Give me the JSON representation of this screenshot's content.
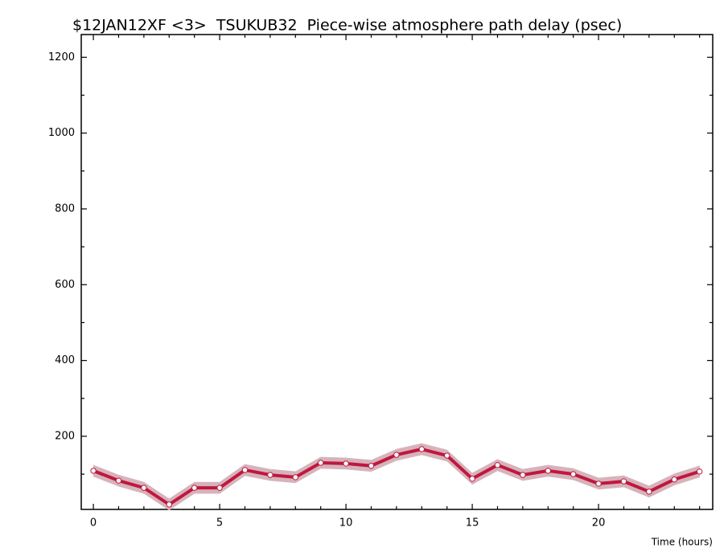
{
  "chart_data": {
    "type": "line",
    "title": "$12JAN12XF <3>  TSUKUB32  Piece-wise atmosphere path delay (psec)",
    "x_label": "Time (hours)",
    "x": [
      0,
      1,
      2,
      3,
      4,
      5,
      6,
      7,
      8,
      9,
      10,
      11,
      12,
      13,
      14,
      15,
      16,
      17,
      18,
      19,
      20,
      21,
      22,
      23,
      24
    ],
    "series": [
      {
        "color": "#c0173f",
        "band_color": "#d6b3ba",
        "values": [
          109,
          83,
          64,
          20,
          64,
          64,
          111,
          98,
          92,
          130,
          128,
          122,
          151,
          166,
          149,
          88,
          124,
          98,
          109,
          100,
          75,
          81,
          54,
          86,
          107
        ],
        "errors": [
          15,
          15,
          15,
          15,
          15,
          15,
          15,
          15,
          15,
          15,
          15,
          15,
          15,
          15,
          15,
          15,
          15,
          15,
          15,
          15,
          15,
          15,
          15,
          15,
          15
        ]
      }
    ],
    "xlim": [
      -0.48,
      24.52
    ],
    "ylim": [
      7,
      1260
    ],
    "xticks": [
      0,
      5,
      10,
      15,
      20
    ],
    "yticks": [
      200,
      400,
      600,
      800,
      1000,
      1200
    ],
    "xminorticks": [
      1,
      2,
      3,
      4,
      6,
      7,
      8,
      9,
      11,
      12,
      13,
      14,
      16,
      17,
      18,
      19,
      21,
      22,
      23,
      24
    ],
    "yminorticks": [
      100,
      300,
      500,
      700,
      900,
      1100
    ]
  }
}
